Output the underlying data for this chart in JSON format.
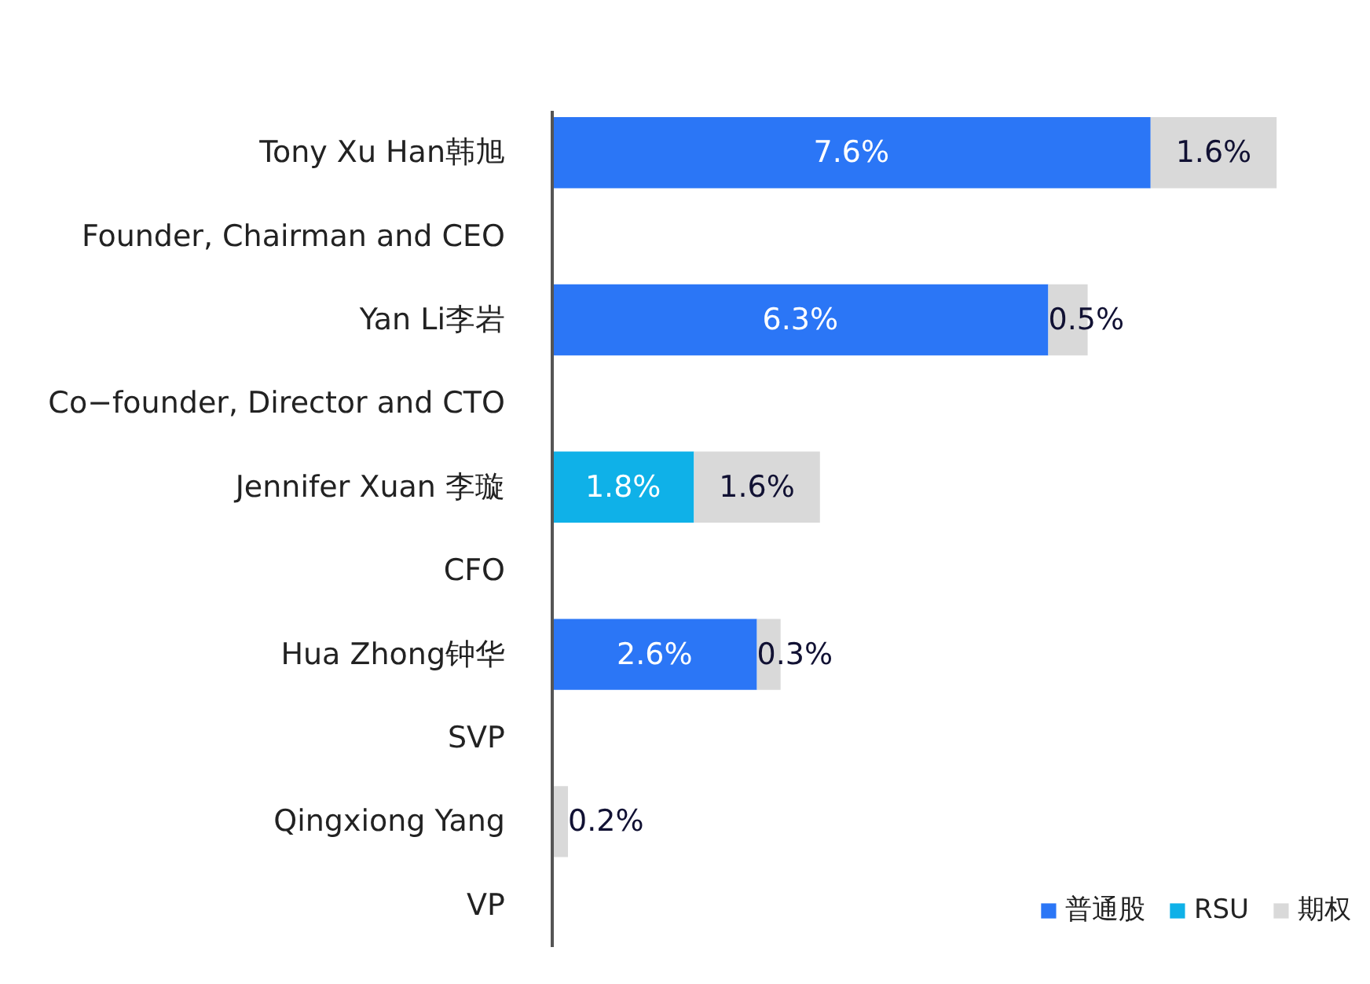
{
  "chart_data": {
    "type": "bar",
    "orientation": "horizontal",
    "stacked": true,
    "legend": "bottom right",
    "tick_labels": "y",
    "categories": [
      "Tony Xu Han韩旭",
      "Founder, Chairman and CEO",
      "Yan Li李岩",
      "Co−founder, Director and CTO",
      "Jennifer Xuan 李璇",
      "CFO",
      "Hua Zhong钟华",
      "SVP",
      "Qingxiong Yang",
      "VP"
    ],
    "series": [
      {
        "name": "普通股",
        "color": "#2b76f6",
        "values": [
          7.6,
          null,
          6.3,
          null,
          0,
          null,
          2.6,
          null,
          0,
          null
        ],
        "value_labels": [
          "7.6%",
          null,
          "6.3%",
          null,
          null,
          null,
          "2.6%",
          null,
          null,
          null
        ]
      },
      {
        "name": "RSU",
        "color": "#0fb1e8",
        "values": [
          0,
          null,
          0,
          null,
          1.8,
          null,
          0,
          null,
          0,
          null
        ],
        "value_labels": [
          null,
          null,
          null,
          null,
          "1.8%",
          null,
          null,
          null,
          null,
          null
        ]
      },
      {
        "name": "期权",
        "color": "#d9d9d9",
        "values": [
          1.6,
          null,
          0.5,
          null,
          1.6,
          null,
          0.3,
          null,
          0.2,
          null
        ],
        "value_labels": [
          "1.6%",
          null,
          "0.5%",
          null,
          "1.6%",
          null,
          "0.3%",
          null,
          "0.2%",
          null
        ]
      }
    ]
  }
}
